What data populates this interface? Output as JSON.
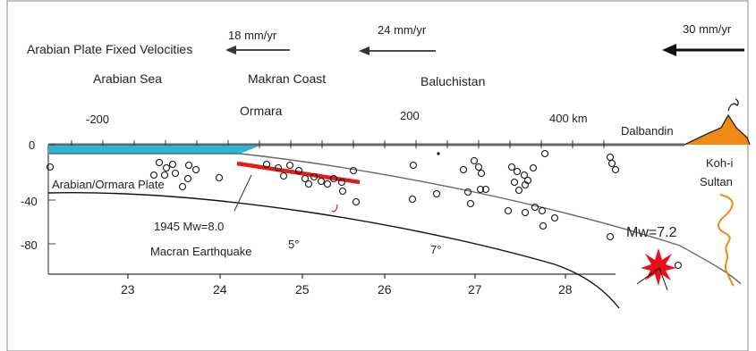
{
  "header": {
    "title": "Arabian Plate Fixed Velocities",
    "velocities": [
      "18 mm/yr",
      "24 mm/yr",
      "30 mm/yr"
    ]
  },
  "regions": [
    "Arabian Sea",
    "Makran Coast",
    "Baluchistan"
  ],
  "places": {
    "ormara": "Ormara",
    "dalbandin": "Dalbandin",
    "koh_line1": "Koh-i",
    "koh_line2": "Sultan"
  },
  "distance_axis": {
    "ticks": [
      "-200",
      "200",
      "400 km"
    ]
  },
  "depth_axis": {
    "ticks": [
      "0",
      "-40",
      "-80"
    ]
  },
  "longitude_axis": {
    "ticks": [
      "23",
      "24",
      "25",
      "26",
      "27",
      "28"
    ]
  },
  "labels": {
    "plate": "Arabian/Ormara Plate",
    "eq1945_line1": "1945 Mw=8.0",
    "eq1945_line2": "Macran Earthquake",
    "mw72": "Mw=7.2",
    "dip1": "5°",
    "dip2": "7°"
  },
  "colors": {
    "sea": "#29b6d6",
    "rupture": "#e21b1b",
    "star": "#e8101a",
    "volcano": "#f08a12",
    "river": "#f08a12"
  }
}
